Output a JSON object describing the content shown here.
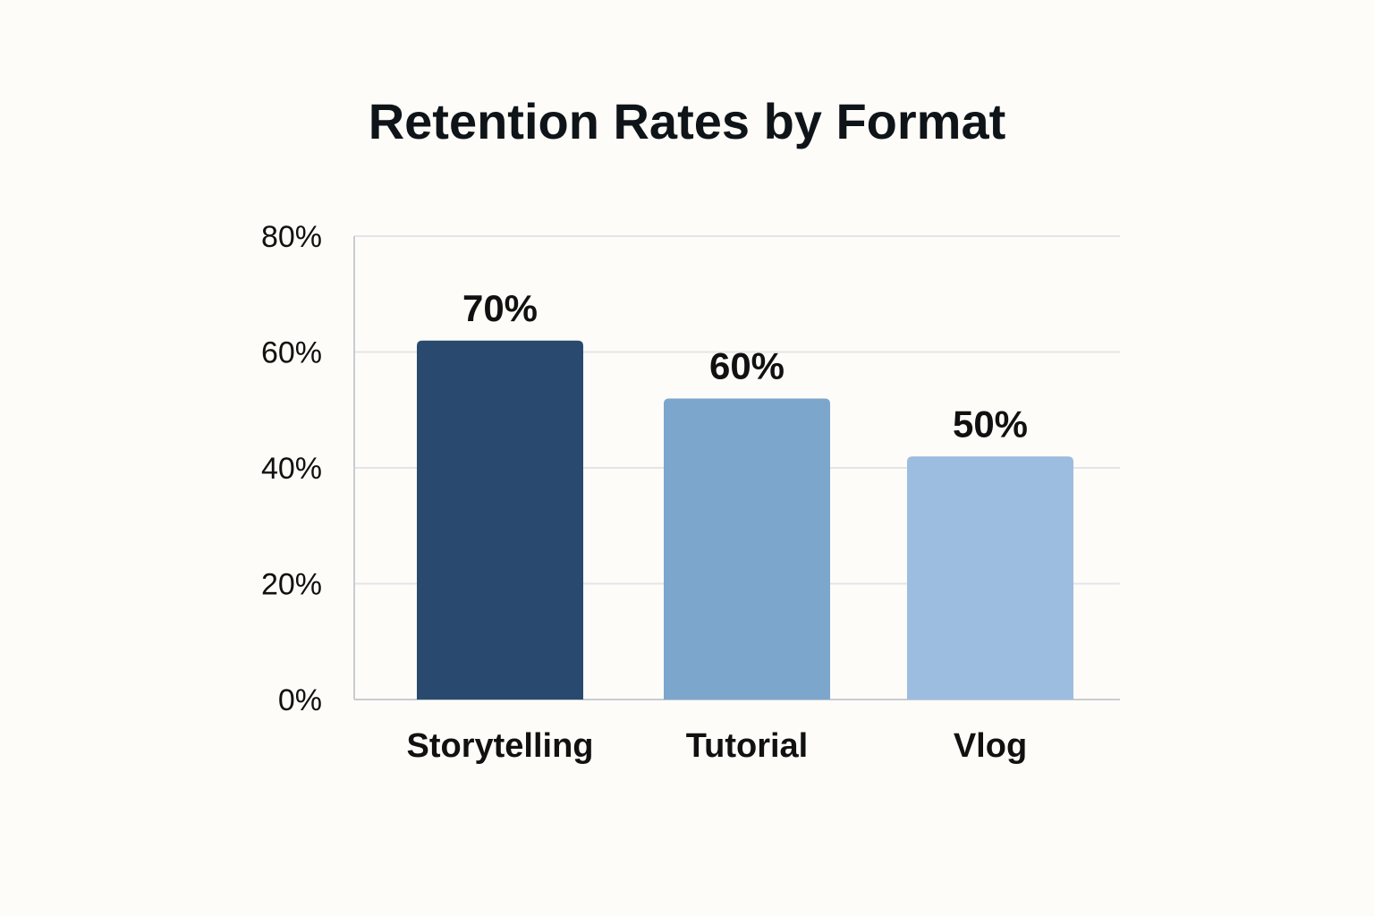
{
  "chart_data": {
    "type": "bar",
    "title": "Retention Rates by Format",
    "xlabel": "",
    "ylabel": "",
    "categories": [
      "Storytelling",
      "Tutorial",
      "Vlog"
    ],
    "values": [
      70,
      60,
      50
    ],
    "data_labels": [
      "70%",
      "60%",
      "50%"
    ],
    "ylim": [
      0,
      80
    ],
    "yticks": [
      0,
      20,
      40,
      60,
      80
    ],
    "ytick_labels": [
      "0%",
      "20%",
      "40%",
      "60%",
      "80%"
    ],
    "grid": true,
    "legend": "none",
    "bar_colors": [
      "#294a6e",
      "#7ca6cc",
      "#9dbde0"
    ],
    "grid_color": "#e3e5e8",
    "axis_color": "#c9ccd1",
    "background_color": "#fdfcf8"
  }
}
